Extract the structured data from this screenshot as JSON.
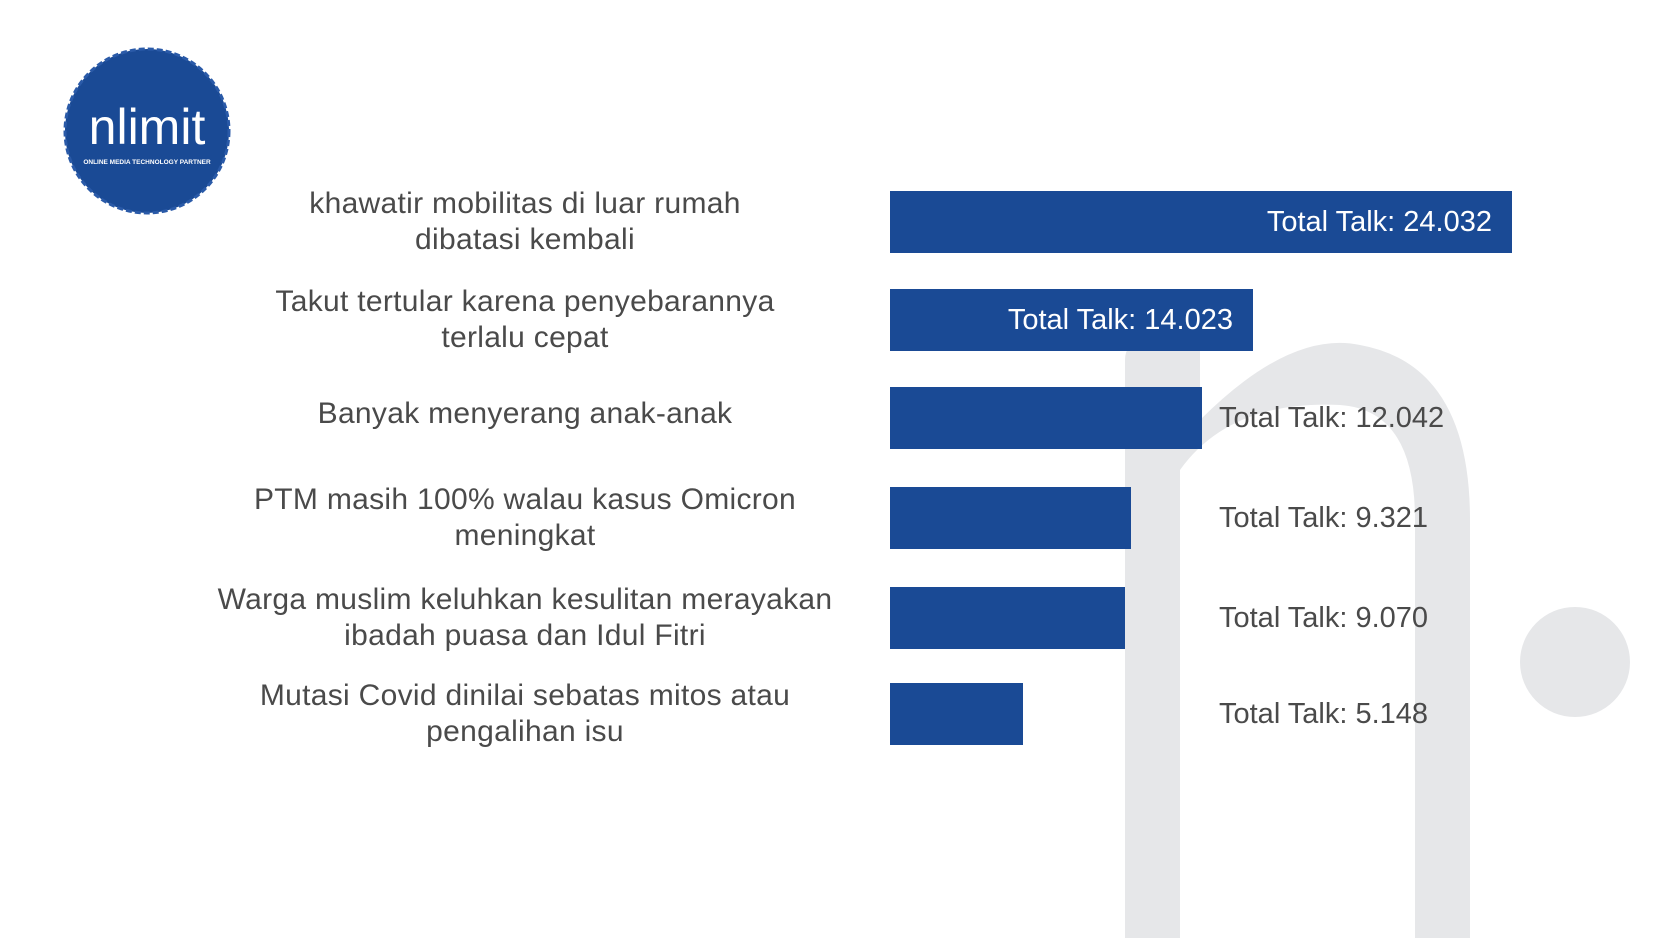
{
  "brand": {
    "logo_text": "nlimit",
    "tagline": "ONLINE MEDIA TECHNOLOGY PARTNER",
    "color": "#1a4a95",
    "watermark_color": "#e6e7e9"
  },
  "chart_data": {
    "type": "bar",
    "orientation": "horizontal",
    "title": "",
    "xlabel": "",
    "ylabel": "",
    "value_prefix": "Total Talk: ",
    "xlim": [
      0,
      24032
    ],
    "bar_color": "#1a4a95",
    "grid": false,
    "categories": [
      "khawatir mobilitas di luar rumah\ndibatasi kembali",
      "Takut tertular karena penyebarannya\nterlalu cepat",
      "Banyak menyerang anak-anak",
      "PTM masih 100% walau kasus Omicron\nmeningkat",
      "Warga muslim keluhkan kesulitan merayakan\nibadah puasa dan Idul Fitri",
      "Mutasi Covid dinilai sebatas mitos atau\npengalihan isu"
    ],
    "values": [
      24032,
      14023,
      12042,
      9321,
      9070,
      5148
    ],
    "data_labels": [
      "Total Talk: 24.032",
      "Total Talk: 14.023",
      "Total Talk: 12.042",
      "Total Talk: 9.321",
      "Total Talk: 9.070",
      "Total Talk: 5.148"
    ],
    "label_inside": [
      true,
      true,
      false,
      false,
      false,
      false
    ]
  }
}
